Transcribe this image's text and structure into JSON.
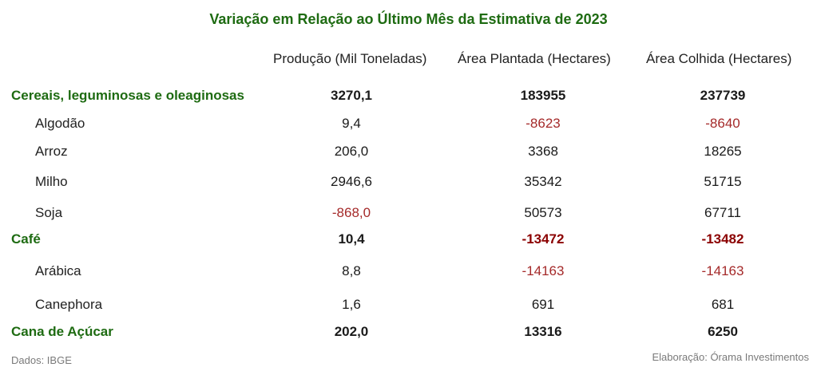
{
  "title": "Variação em Relação ao Último Mês da Estimativa de 2023",
  "columns": [
    "Produção (Mil Toneladas)",
    "Área Plantada (Hectares)",
    "Área Colhida (Hectares)"
  ],
  "rows": [
    {
      "label": "Cereais, leguminosas e oleaginosas",
      "level": "category",
      "values": [
        "3270,1",
        "183955",
        "237739"
      ]
    },
    {
      "label": "Algodão",
      "level": "sub",
      "values": [
        "9,4",
        "-8623",
        "-8640"
      ]
    },
    {
      "label": "Arroz",
      "level": "sub",
      "values": [
        "206,0",
        "3368",
        "18265"
      ]
    },
    {
      "label": "Milho",
      "level": "sub",
      "values": [
        "2946,6",
        "35342",
        "51715"
      ]
    },
    {
      "label": "Soja",
      "level": "sub",
      "values": [
        "-868,0",
        "50573",
        "67711"
      ]
    },
    {
      "label": "Café",
      "level": "category",
      "values": [
        "10,4",
        "-13472",
        "-13482"
      ]
    },
    {
      "label": "Arábica",
      "level": "sub",
      "values": [
        "8,8",
        "-14163",
        "-14163"
      ]
    },
    {
      "label": "Canephora",
      "level": "sub",
      "values": [
        "1,6",
        "691",
        "681"
      ]
    },
    {
      "label": "Cana de Açúcar",
      "level": "category",
      "values": [
        "202,0",
        "13316",
        "6250"
      ]
    }
  ],
  "footer": {
    "source": "Dados: IBGE",
    "credit": "Elaboração: Órama Investimentos"
  },
  "colors": {
    "title": "#1e6b12",
    "category_label": "#1e6b12",
    "negative": "#a52a2a",
    "negative_bold": "#8b0000",
    "footer": "#7a7a7a"
  }
}
